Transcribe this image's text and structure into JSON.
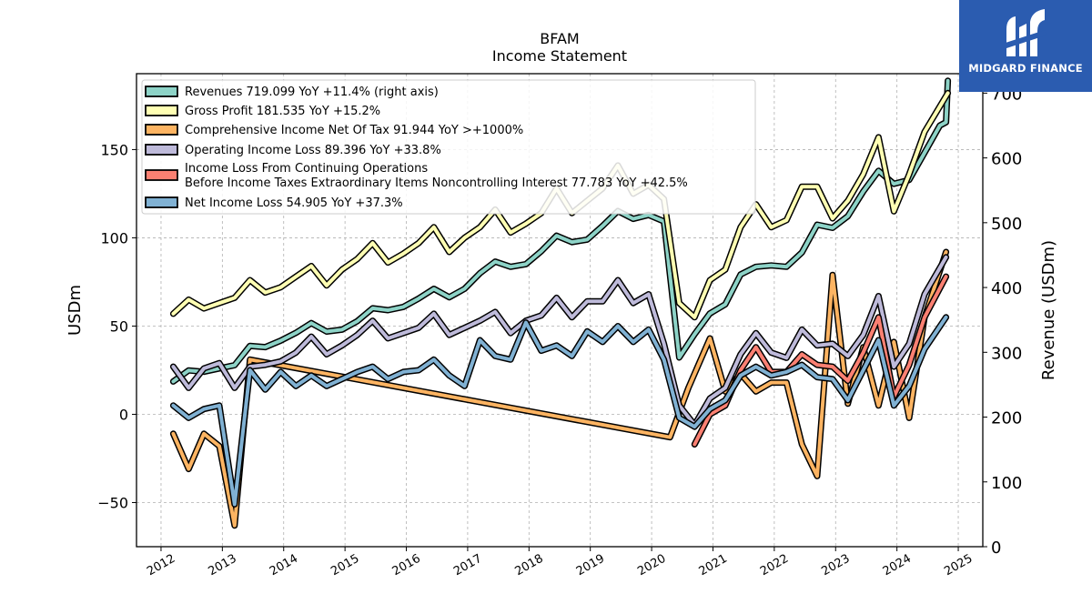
{
  "brand": {
    "name": "MIDGARD FINANCE",
    "color": "#2b5cb0"
  },
  "chart_data": {
    "type": "line",
    "title": "BFAM",
    "subtitle": "Income Statement",
    "ylabel": "USDm",
    "ylabel_right": "Revenue (USDm)",
    "ylim": [
      -75,
      193
    ],
    "ylim_right": [
      0,
      730
    ],
    "yticks": [
      -50,
      0,
      50,
      100,
      150
    ],
    "yticks_right": [
      0,
      100,
      200,
      300,
      400,
      500,
      600,
      700
    ],
    "xlim": [
      2011.6,
      2025.4
    ],
    "xticks": [
      "2012",
      "2013",
      "2014",
      "2015",
      "2016",
      "2017",
      "2018",
      "2019",
      "2020",
      "2021",
      "2022",
      "2023",
      "2024",
      "2025"
    ],
    "grid": true,
    "legend_position": "top-left",
    "series": [
      {
        "name": "Revenues",
        "legend": "Revenues  719.099 YoY +11.4% (right axis)",
        "axis": "right",
        "color": "#8dd3c7",
        "points": [
          [
            2012.2,
            255
          ],
          [
            2012.45,
            272
          ],
          [
            2012.7,
            270
          ],
          [
            2012.95,
            275
          ],
          [
            2013.2,
            280
          ],
          [
            2013.45,
            310
          ],
          [
            2013.7,
            308
          ],
          [
            2013.95,
            318
          ],
          [
            2014.2,
            330
          ],
          [
            2014.45,
            345
          ],
          [
            2014.7,
            332
          ],
          [
            2014.95,
            335
          ],
          [
            2015.2,
            348
          ],
          [
            2015.45,
            368
          ],
          [
            2015.7,
            365
          ],
          [
            2015.95,
            370
          ],
          [
            2016.2,
            383
          ],
          [
            2016.45,
            398
          ],
          [
            2016.7,
            385
          ],
          [
            2016.95,
            398
          ],
          [
            2017.2,
            422
          ],
          [
            2017.45,
            440
          ],
          [
            2017.7,
            432
          ],
          [
            2017.95,
            436
          ],
          [
            2018.2,
            456
          ],
          [
            2018.45,
            480
          ],
          [
            2018.7,
            470
          ],
          [
            2018.95,
            474
          ],
          [
            2019.2,
            495
          ],
          [
            2019.45,
            518
          ],
          [
            2019.7,
            506
          ],
          [
            2019.95,
            512
          ],
          [
            2020.2,
            502
          ],
          [
            2020.45,
            292
          ],
          [
            2020.7,
            328
          ],
          [
            2020.95,
            360
          ],
          [
            2021.2,
            374
          ],
          [
            2021.45,
            420
          ],
          [
            2021.7,
            432
          ],
          [
            2021.95,
            434
          ],
          [
            2022.2,
            432
          ],
          [
            2022.45,
            454
          ],
          [
            2022.7,
            497
          ],
          [
            2022.95,
            492
          ],
          [
            2023.2,
            510
          ],
          [
            2023.45,
            548
          ],
          [
            2023.7,
            580
          ],
          [
            2023.95,
            560
          ],
          [
            2024.2,
            566
          ],
          [
            2024.45,
            608
          ],
          [
            2024.7,
            650
          ],
          [
            2024.8,
            655
          ],
          [
            2024.83,
            719
          ]
        ]
      },
      {
        "name": "Gross Profit",
        "legend": "Gross Profit  181.535 YoY +15.2%",
        "axis": "left",
        "color": "#ffffb3",
        "points": [
          [
            2012.2,
            57
          ],
          [
            2012.45,
            65
          ],
          [
            2012.7,
            60
          ],
          [
            2012.95,
            63
          ],
          [
            2013.2,
            66
          ],
          [
            2013.45,
            76
          ],
          [
            2013.7,
            69
          ],
          [
            2013.95,
            72
          ],
          [
            2014.2,
            78
          ],
          [
            2014.45,
            84
          ],
          [
            2014.7,
            73
          ],
          [
            2014.95,
            82
          ],
          [
            2015.2,
            88
          ],
          [
            2015.45,
            97
          ],
          [
            2015.7,
            86
          ],
          [
            2015.95,
            91
          ],
          [
            2016.2,
            97
          ],
          [
            2016.45,
            106
          ],
          [
            2016.7,
            92
          ],
          [
            2016.95,
            100
          ],
          [
            2017.2,
            106
          ],
          [
            2017.45,
            116
          ],
          [
            2017.7,
            103
          ],
          [
            2017.95,
            108
          ],
          [
            2018.2,
            114
          ],
          [
            2018.45,
            128
          ],
          [
            2018.7,
            114
          ],
          [
            2018.95,
            121
          ],
          [
            2019.2,
            128
          ],
          [
            2019.45,
            141
          ],
          [
            2019.7,
            125
          ],
          [
            2019.95,
            130
          ],
          [
            2020.2,
            122
          ],
          [
            2020.45,
            63
          ],
          [
            2020.7,
            55
          ],
          [
            2020.95,
            76
          ],
          [
            2021.2,
            82
          ],
          [
            2021.45,
            106
          ],
          [
            2021.7,
            119
          ],
          [
            2021.95,
            106
          ],
          [
            2022.2,
            110
          ],
          [
            2022.45,
            129
          ],
          [
            2022.7,
            129
          ],
          [
            2022.95,
            111
          ],
          [
            2023.2,
            121
          ],
          [
            2023.45,
            136
          ],
          [
            2023.7,
            157
          ],
          [
            2023.95,
            115
          ],
          [
            2024.2,
            136
          ],
          [
            2024.45,
            160
          ],
          [
            2024.83,
            182
          ]
        ]
      },
      {
        "name": "Comprehensive Income Net Of Tax",
        "legend": "Comprehensive Income Net Of Tax  91.944 YoY >+1000%",
        "axis": "left",
        "color": "#fdb462",
        "points": [
          [
            2012.2,
            -11
          ],
          [
            2012.45,
            -31
          ],
          [
            2012.7,
            -11
          ],
          [
            2012.95,
            -18
          ],
          [
            2013.2,
            -63
          ],
          [
            2013.45,
            31
          ],
          [
            2020.3,
            -13
          ],
          [
            2020.6,
            15
          ],
          [
            2020.95,
            43
          ],
          [
            2021.2,
            13
          ],
          [
            2021.45,
            23
          ],
          [
            2021.7,
            13
          ],
          [
            2021.95,
            18
          ],
          [
            2022.2,
            18
          ],
          [
            2022.45,
            -17
          ],
          [
            2022.7,
            -35
          ],
          [
            2022.95,
            79
          ],
          [
            2023.2,
            6
          ],
          [
            2023.45,
            38
          ],
          [
            2023.7,
            5
          ],
          [
            2023.95,
            41
          ],
          [
            2024.2,
            -2
          ],
          [
            2024.45,
            55
          ],
          [
            2024.8,
            92
          ]
        ]
      },
      {
        "name": "Operating Income Loss",
        "legend": "Operating Income Loss  89.396 YoY +33.8%",
        "axis": "left",
        "color": "#bebada",
        "points": [
          [
            2012.2,
            27
          ],
          [
            2012.45,
            15
          ],
          [
            2012.7,
            26
          ],
          [
            2012.95,
            29
          ],
          [
            2013.2,
            15
          ],
          [
            2013.45,
            27
          ],
          [
            2013.7,
            28
          ],
          [
            2013.95,
            30
          ],
          [
            2014.2,
            35
          ],
          [
            2014.45,
            44
          ],
          [
            2014.7,
            34
          ],
          [
            2014.95,
            39
          ],
          [
            2015.2,
            45
          ],
          [
            2015.45,
            53
          ],
          [
            2015.7,
            43
          ],
          [
            2015.95,
            46
          ],
          [
            2016.2,
            49
          ],
          [
            2016.45,
            57
          ],
          [
            2016.7,
            45
          ],
          [
            2016.95,
            49
          ],
          [
            2017.2,
            53
          ],
          [
            2017.45,
            58
          ],
          [
            2017.7,
            46
          ],
          [
            2017.95,
            53
          ],
          [
            2018.2,
            56
          ],
          [
            2018.45,
            66
          ],
          [
            2018.7,
            55
          ],
          [
            2018.95,
            64
          ],
          [
            2019.2,
            64
          ],
          [
            2019.45,
            76
          ],
          [
            2019.7,
            63
          ],
          [
            2019.95,
            68
          ],
          [
            2020.2,
            40
          ],
          [
            2020.45,
            5
          ],
          [
            2020.7,
            -6
          ],
          [
            2020.95,
            9
          ],
          [
            2021.2,
            15
          ],
          [
            2021.45,
            34
          ],
          [
            2021.7,
            46
          ],
          [
            2021.95,
            35
          ],
          [
            2022.2,
            32
          ],
          [
            2022.45,
            48
          ],
          [
            2022.7,
            39
          ],
          [
            2022.95,
            40
          ],
          [
            2023.2,
            33
          ],
          [
            2023.45,
            45
          ],
          [
            2023.7,
            67
          ],
          [
            2023.95,
            27
          ],
          [
            2024.2,
            40
          ],
          [
            2024.45,
            68
          ],
          [
            2024.8,
            89
          ]
        ]
      },
      {
        "name": "Income Loss From Continuing Operations Before Income Taxes Extraordinary Items Noncontrolling Interest",
        "legend_line1": "Income Loss From Continuing Operations",
        "legend_line2": "Before Income Taxes Extraordinary Items Noncontrolling Interest  77.783 YoY +42.5%",
        "axis": "left",
        "color": "#fb8072",
        "points": [
          [
            2020.7,
            -17
          ],
          [
            2020.95,
            0
          ],
          [
            2021.2,
            5
          ],
          [
            2021.45,
            25
          ],
          [
            2021.7,
            38
          ],
          [
            2021.95,
            24
          ],
          [
            2022.2,
            24
          ],
          [
            2022.45,
            34
          ],
          [
            2022.7,
            28
          ],
          [
            2022.95,
            27
          ],
          [
            2023.2,
            19
          ],
          [
            2023.45,
            35
          ],
          [
            2023.7,
            55
          ],
          [
            2023.95,
            10
          ],
          [
            2024.2,
            28
          ],
          [
            2024.45,
            55
          ],
          [
            2024.8,
            78
          ]
        ]
      },
      {
        "name": "Net Income Loss",
        "legend": "Net Income Loss  54.905 YoY +37.3%",
        "axis": "left",
        "color": "#80b1d3",
        "points": [
          [
            2012.2,
            5
          ],
          [
            2012.45,
            -2
          ],
          [
            2012.7,
            3
          ],
          [
            2012.95,
            5
          ],
          [
            2013.2,
            -51
          ],
          [
            2013.45,
            25
          ],
          [
            2013.7,
            14
          ],
          [
            2013.95,
            24
          ],
          [
            2014.2,
            16
          ],
          [
            2014.45,
            22
          ],
          [
            2014.7,
            16
          ],
          [
            2014.95,
            20
          ],
          [
            2015.2,
            24
          ],
          [
            2015.45,
            27
          ],
          [
            2015.7,
            20
          ],
          [
            2015.95,
            24
          ],
          [
            2016.2,
            25
          ],
          [
            2016.45,
            31
          ],
          [
            2016.7,
            22
          ],
          [
            2016.95,
            16
          ],
          [
            2017.2,
            42
          ],
          [
            2017.45,
            33
          ],
          [
            2017.7,
            31
          ],
          [
            2017.95,
            52
          ],
          [
            2018.2,
            36
          ],
          [
            2018.45,
            39
          ],
          [
            2018.7,
            33
          ],
          [
            2018.95,
            47
          ],
          [
            2019.2,
            41
          ],
          [
            2019.45,
            50
          ],
          [
            2019.7,
            41
          ],
          [
            2019.95,
            48
          ],
          [
            2020.2,
            31
          ],
          [
            2020.45,
            -2
          ],
          [
            2020.7,
            -7
          ],
          [
            2020.95,
            3
          ],
          [
            2021.2,
            8
          ],
          [
            2021.45,
            22
          ],
          [
            2021.7,
            27
          ],
          [
            2021.95,
            22
          ],
          [
            2022.2,
            24
          ],
          [
            2022.45,
            28
          ],
          [
            2022.7,
            21
          ],
          [
            2022.95,
            20
          ],
          [
            2023.2,
            8
          ],
          [
            2023.45,
            25
          ],
          [
            2023.7,
            42
          ],
          [
            2023.95,
            5
          ],
          [
            2024.2,
            16
          ],
          [
            2024.45,
            37
          ],
          [
            2024.8,
            55
          ]
        ]
      }
    ]
  }
}
